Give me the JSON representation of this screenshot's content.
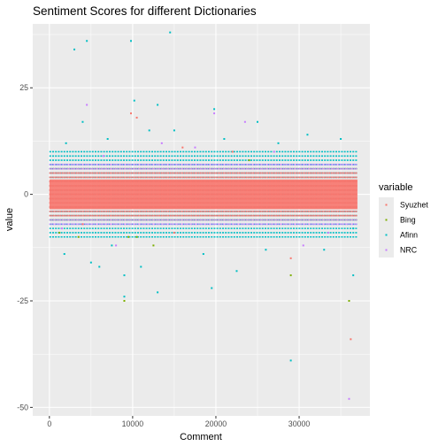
{
  "chart_data": {
    "type": "scatter",
    "title": "Sentiment Scores for different Dictionaries",
    "xlabel": "Comment",
    "ylabel": "value",
    "xlim": [
      -2000,
      38500
    ],
    "ylim": [
      -52,
      40
    ],
    "x_ticks": [
      0,
      10000,
      20000,
      30000
    ],
    "x_tick_labels": [
      "0",
      "10000",
      "20000",
      "30000"
    ],
    "y_ticks": [
      -50,
      -25,
      0,
      25
    ],
    "y_tick_labels": [
      "-50",
      "-25",
      "0",
      "25"
    ],
    "grid": true,
    "panel_background": "#ebebeb",
    "legend": {
      "title": "variable",
      "position": "right"
    },
    "series": [
      {
        "name": "Syuzhet",
        "color": "#f8766d",
        "dense_band": {
          "x_range": [
            0,
            37000
          ],
          "y_range": [
            -5,
            5
          ]
        },
        "points": [
          {
            "x": 9800,
            "y": 19
          },
          {
            "x": 10500,
            "y": 18
          },
          {
            "x": 16000,
            "y": 11
          },
          {
            "x": 22000,
            "y": 10
          },
          {
            "x": 29000,
            "y": -15
          },
          {
            "x": 36200,
            "y": -34
          },
          {
            "x": 4000,
            "y": -7
          },
          {
            "x": 15000,
            "y": -9
          }
        ]
      },
      {
        "name": "Bing",
        "color": "#7cae00",
        "dense_band": {
          "x_range": [
            0,
            37000
          ],
          "y_range": [
            -6,
            6
          ]
        },
        "points": [
          {
            "x": 9000,
            "y": -25
          },
          {
            "x": 36000,
            "y": -25
          },
          {
            "x": 29000,
            "y": -19
          },
          {
            "x": 1200,
            "y": -9
          },
          {
            "x": 3500,
            "y": -10
          },
          {
            "x": 9500,
            "y": -10
          },
          {
            "x": 10500,
            "y": -10
          },
          {
            "x": 12500,
            "y": -12
          },
          {
            "x": 24000,
            "y": 8
          }
        ]
      },
      {
        "name": "Afinn",
        "color": "#00bfc4",
        "dense_band": {
          "x_range": [
            0,
            37000
          ],
          "y_range": [
            -10,
            10
          ]
        },
        "points": [
          {
            "x": 3000,
            "y": 34
          },
          {
            "x": 4500,
            "y": 36
          },
          {
            "x": 9800,
            "y": 36
          },
          {
            "x": 14500,
            "y": 38
          },
          {
            "x": 10200,
            "y": 22
          },
          {
            "x": 19800,
            "y": 20
          },
          {
            "x": 13000,
            "y": 21
          },
          {
            "x": 4000,
            "y": 17
          },
          {
            "x": 25000,
            "y": 17
          },
          {
            "x": 29000,
            "y": -39
          },
          {
            "x": 9000,
            "y": -24
          },
          {
            "x": 19500,
            "y": -22
          },
          {
            "x": 13000,
            "y": -23
          },
          {
            "x": 36500,
            "y": -19
          },
          {
            "x": 9000,
            "y": -19
          },
          {
            "x": 5000,
            "y": -16
          },
          {
            "x": 22500,
            "y": -18
          },
          {
            "x": 36500,
            "y": -8
          },
          {
            "x": 7500,
            "y": -12
          },
          {
            "x": 1800,
            "y": -14
          },
          {
            "x": 33000,
            "y": -13
          },
          {
            "x": 18500,
            "y": -14
          },
          {
            "x": 11000,
            "y": -17
          },
          {
            "x": 6000,
            "y": -17
          },
          {
            "x": 26000,
            "y": -13
          },
          {
            "x": 31000,
            "y": 14
          },
          {
            "x": 15000,
            "y": 15
          },
          {
            "x": 2000,
            "y": 12
          },
          {
            "x": 7000,
            "y": 13
          },
          {
            "x": 21000,
            "y": 13
          },
          {
            "x": 27500,
            "y": 12
          },
          {
            "x": 35000,
            "y": 13
          },
          {
            "x": 12000,
            "y": 15
          }
        ]
      },
      {
        "name": "NRC",
        "color": "#c77cff",
        "dense_band": {
          "x_range": [
            0,
            37000
          ],
          "y_range": [
            -7,
            7
          ]
        },
        "points": [
          {
            "x": 4500,
            "y": 21
          },
          {
            "x": 36000,
            "y": -48
          },
          {
            "x": 23500,
            "y": 17
          },
          {
            "x": 19800,
            "y": 19
          },
          {
            "x": 8000,
            "y": -12
          },
          {
            "x": 30500,
            "y": -12
          },
          {
            "x": 17500,
            "y": 11
          },
          {
            "x": 6500,
            "y": 9
          },
          {
            "x": 13500,
            "y": 12
          },
          {
            "x": 27000,
            "y": 10
          },
          {
            "x": 33500,
            "y": -9
          },
          {
            "x": 1500,
            "y": -8
          }
        ]
      }
    ]
  }
}
